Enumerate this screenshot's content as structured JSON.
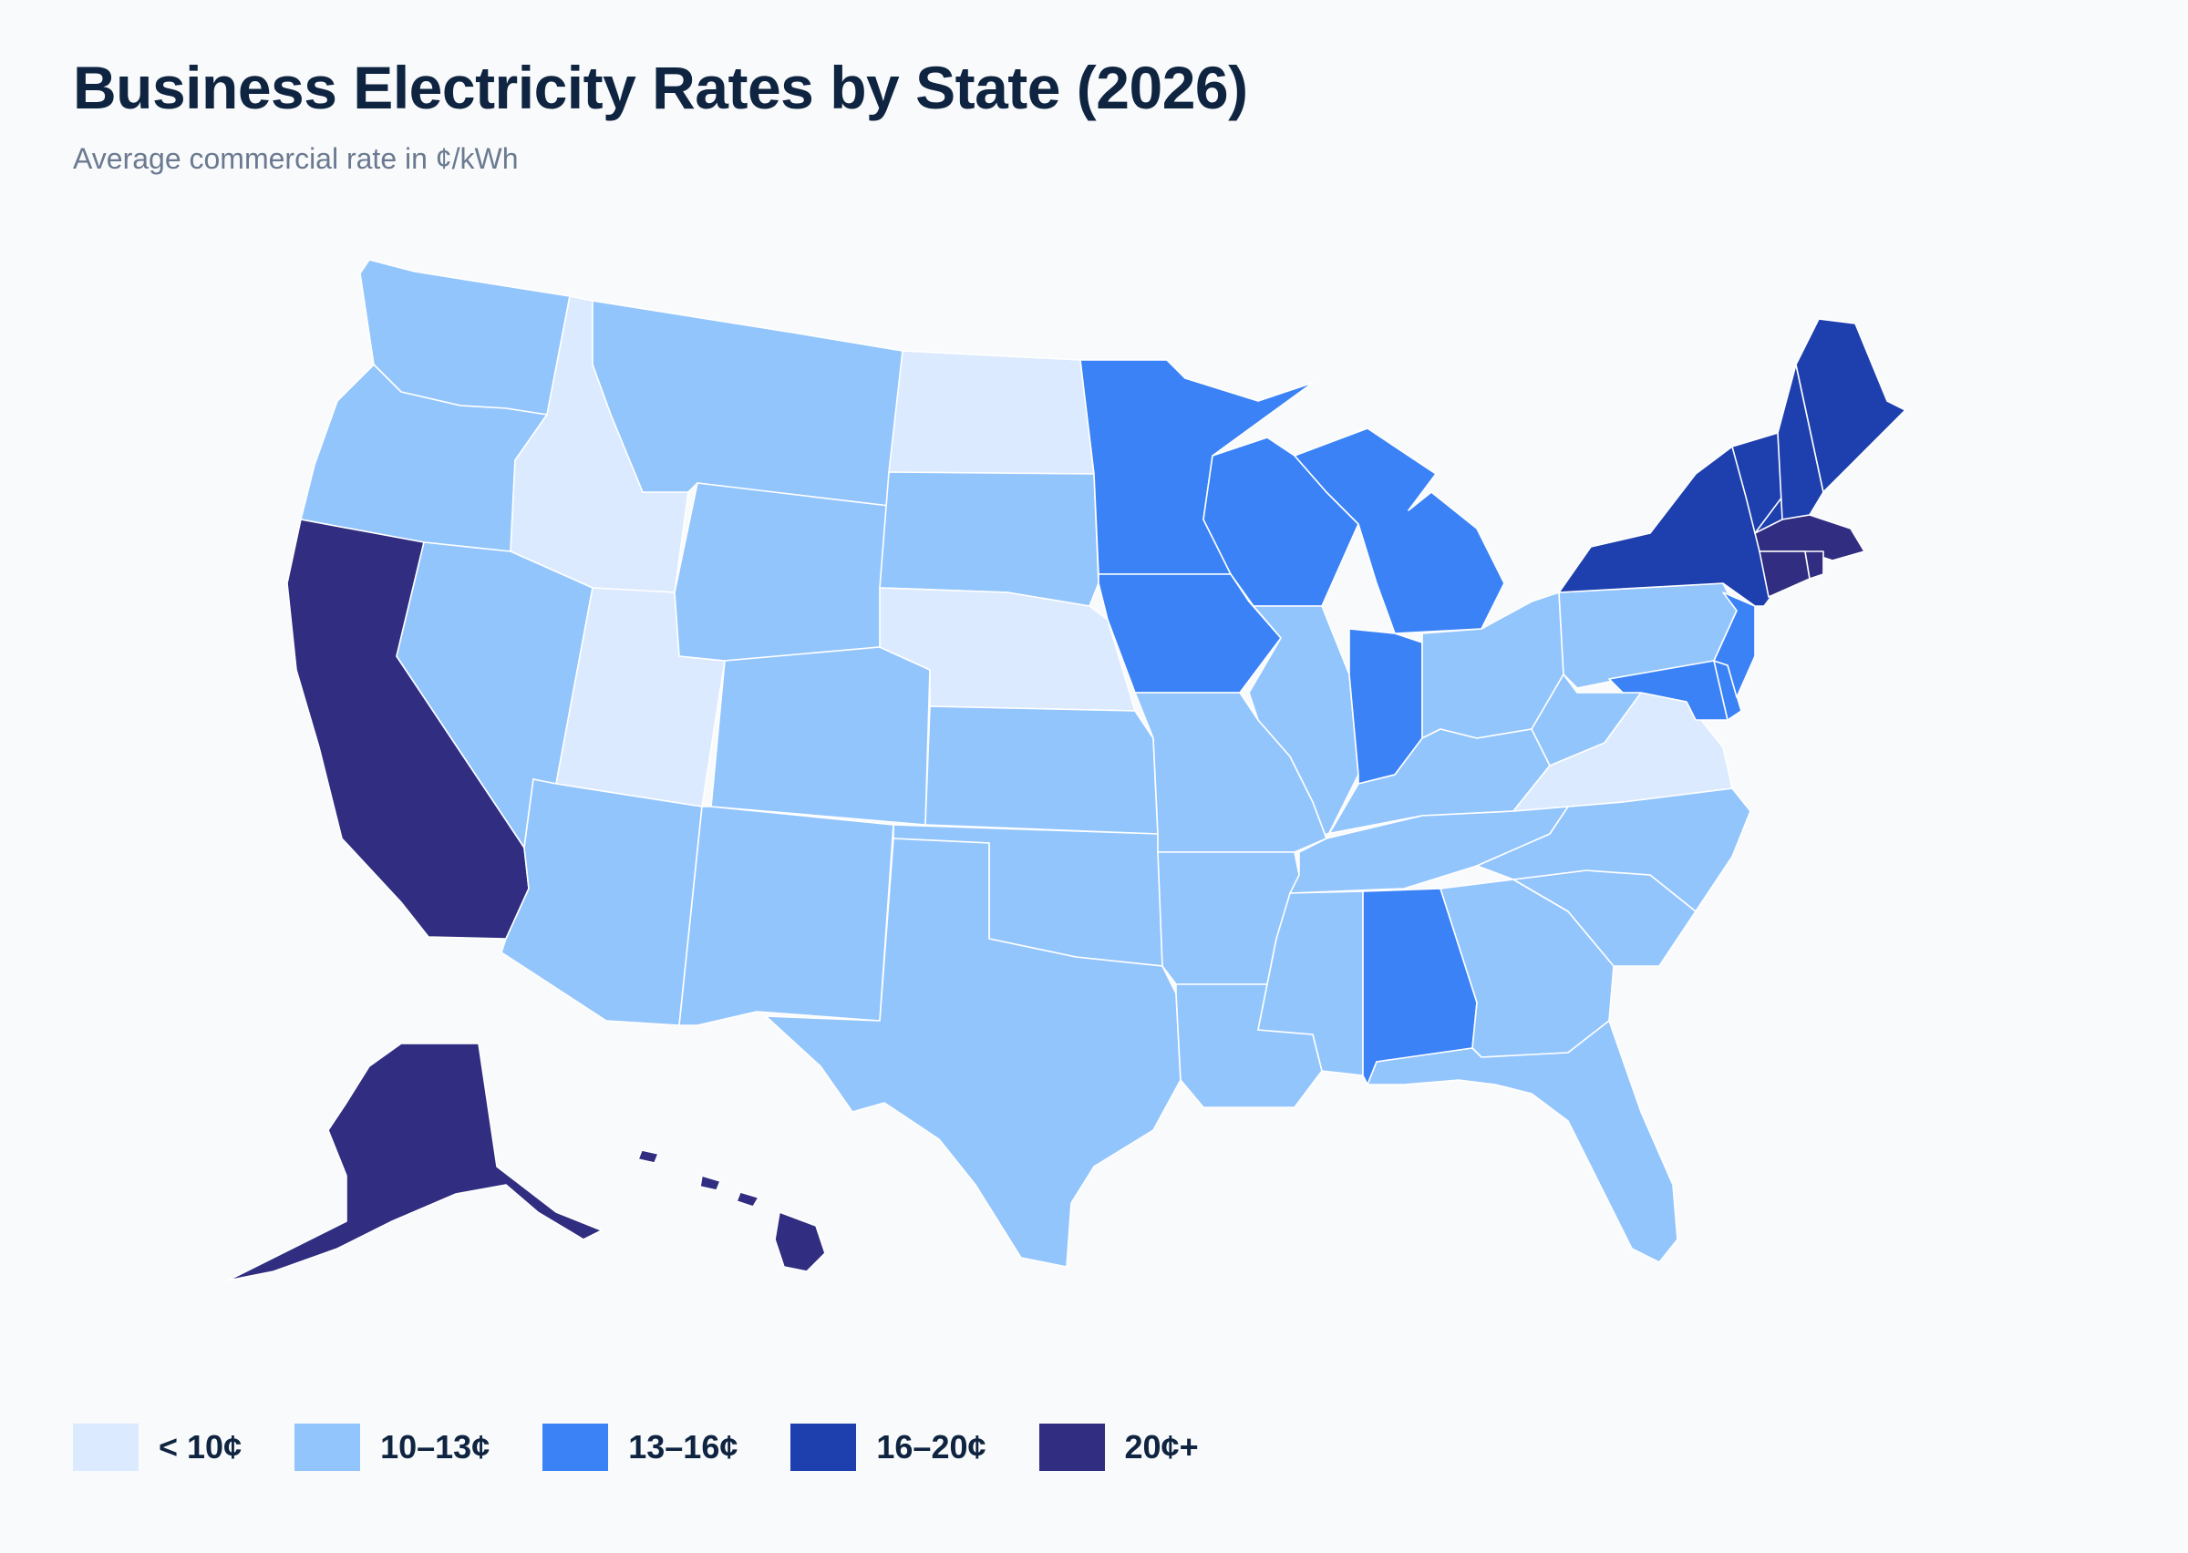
{
  "title": "Business Electricity Rates by State (2026)",
  "subtitle": "Average commercial rate in ¢/kWh",
  "legend": [
    {
      "label": "< 10¢",
      "color": "#dbeafe"
    },
    {
      "label": "10–13¢",
      "color": "#93c5fd"
    },
    {
      "label": "13–16¢",
      "color": "#3b82f6"
    },
    {
      "label": "16–20¢",
      "color": "#1e40af"
    },
    {
      "label": "20¢+",
      "color": "#312e81"
    }
  ],
  "states": [
    {
      "state": "Washington",
      "tier": "10–13¢"
    },
    {
      "state": "Oregon",
      "tier": "10–13¢"
    },
    {
      "state": "California",
      "tier": "20¢+"
    },
    {
      "state": "Idaho",
      "tier": "< 10¢"
    },
    {
      "state": "Nevada",
      "tier": "10–13¢"
    },
    {
      "state": "Utah",
      "tier": "< 10¢"
    },
    {
      "state": "Arizona",
      "tier": "10–13¢"
    },
    {
      "state": "Montana",
      "tier": "10–13¢"
    },
    {
      "state": "Wyoming",
      "tier": "10–13¢"
    },
    {
      "state": "Colorado",
      "tier": "10–13¢"
    },
    {
      "state": "New Mexico",
      "tier": "10–13¢"
    },
    {
      "state": "North Dakota",
      "tier": "< 10¢"
    },
    {
      "state": "South Dakota",
      "tier": "10–13¢"
    },
    {
      "state": "Nebraska",
      "tier": "< 10¢"
    },
    {
      "state": "Kansas",
      "tier": "10–13¢"
    },
    {
      "state": "Oklahoma",
      "tier": "10–13¢"
    },
    {
      "state": "Texas",
      "tier": "10–13¢"
    },
    {
      "state": "Minnesota",
      "tier": "13–16¢"
    },
    {
      "state": "Iowa",
      "tier": "13–16¢"
    },
    {
      "state": "Missouri",
      "tier": "10–13¢"
    },
    {
      "state": "Arkansas",
      "tier": "10–13¢"
    },
    {
      "state": "Louisiana",
      "tier": "10–13¢"
    },
    {
      "state": "Wisconsin",
      "tier": "13–16¢"
    },
    {
      "state": "Illinois",
      "tier": "10–13¢"
    },
    {
      "state": "Michigan",
      "tier": "13–16¢"
    },
    {
      "state": "Indiana",
      "tier": "13–16¢"
    },
    {
      "state": "Ohio",
      "tier": "10–13¢"
    },
    {
      "state": "Kentucky",
      "tier": "10–13¢"
    },
    {
      "state": "Tennessee",
      "tier": "10–13¢"
    },
    {
      "state": "Mississippi",
      "tier": "10–13¢"
    },
    {
      "state": "Alabama",
      "tier": "13–16¢"
    },
    {
      "state": "Georgia",
      "tier": "10–13¢"
    },
    {
      "state": "Florida",
      "tier": "10–13¢"
    },
    {
      "state": "South Carolina",
      "tier": "10–13¢"
    },
    {
      "state": "North Carolina",
      "tier": "10–13¢"
    },
    {
      "state": "Virginia",
      "tier": "< 10¢"
    },
    {
      "state": "West Virginia",
      "tier": "10–13¢"
    },
    {
      "state": "Pennsylvania",
      "tier": "10–13¢"
    },
    {
      "state": "Maryland",
      "tier": "13–16¢"
    },
    {
      "state": "Delaware",
      "tier": "13–16¢"
    },
    {
      "state": "New Jersey",
      "tier": "13–16¢"
    },
    {
      "state": "New York",
      "tier": "16–20¢"
    },
    {
      "state": "Vermont",
      "tier": "16–20¢"
    },
    {
      "state": "New Hampshire",
      "tier": "16–20¢"
    },
    {
      "state": "Maine",
      "tier": "16–20¢"
    },
    {
      "state": "Massachusetts",
      "tier": "20¢+"
    },
    {
      "state": "Connecticut",
      "tier": "20¢+"
    },
    {
      "state": "Rhode Island",
      "tier": "20¢+"
    },
    {
      "state": "Alaska",
      "tier": "20¢+"
    },
    {
      "state": "Hawaii",
      "tier": "20¢+"
    }
  ]
}
